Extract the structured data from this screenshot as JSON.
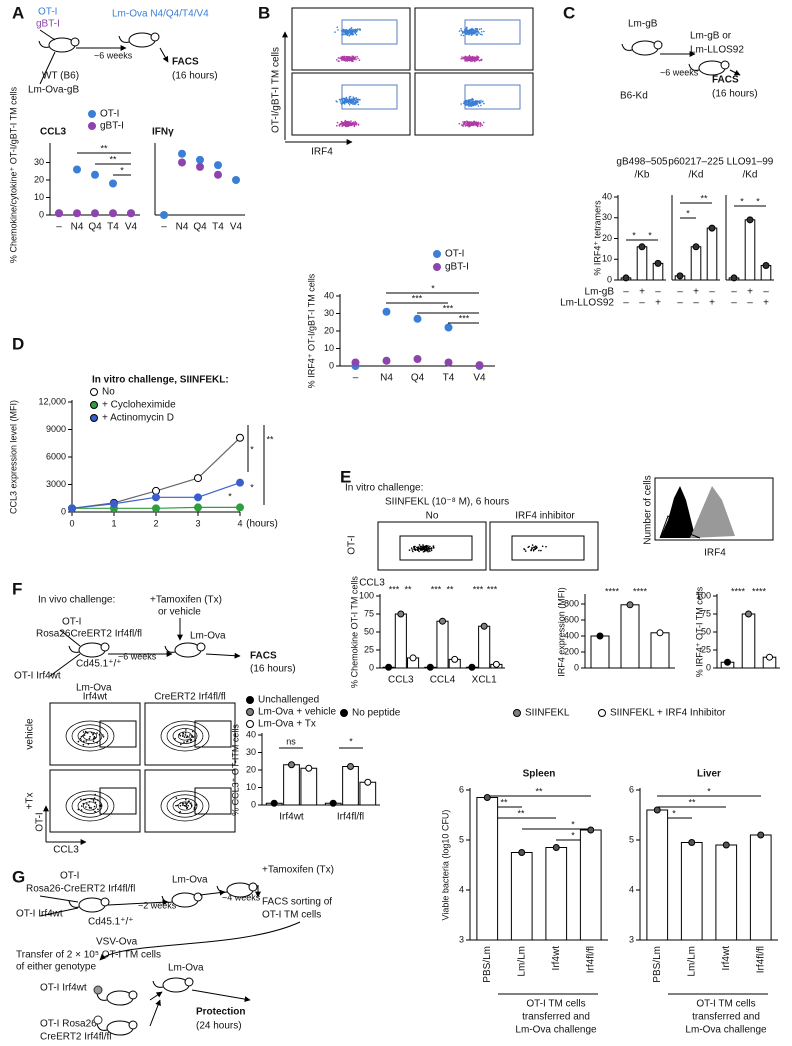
{
  "panels": [
    {
      "label": "A",
      "texts": [
        "OT-I",
        "gBT-I",
        "~6 weeks",
        "WT (B6)",
        "Lm-Ova-gB",
        "Lm-Ova N4/Q4/T4/V4",
        "FACS",
        "(16 hours)"
      ]
    },
    {
      "label": "B",
      "texts": [
        "N4",
        "Q4",
        "T4",
        "V4",
        "OT-I/gBT-I TM cells",
        "IRF4"
      ]
    },
    {
      "label": "C",
      "texts": [
        "Lm-gB",
        "Lm-gB or",
        "Lm-LLOS92",
        "~6 weeks",
        "B6-Kd",
        "FACS",
        "(16 hours)",
        "Lm-gB",
        "Lm-LLOS92"
      ]
    },
    {
      "label": "D"
    },
    {
      "label": "E",
      "texts": [
        "In vitro challenge:",
        "SIINFEKL (10⁻⁸ M), 6 hours",
        "No",
        "IRF4 inhibitor",
        "OT-I",
        "CCL3",
        "Number of cells",
        "IRF4"
      ],
      "gates": [
        85.5,
        10
      ]
    },
    {
      "label": "F",
      "texts": [
        "In vivo challenge:",
        "+Tamoxifen (Tx)",
        "or vehicle",
        "OT-I",
        "Rosa26CreERT2 Irf4fl/fl",
        "Lm-Ova",
        "~6 weeks",
        "FACS",
        "(16 hours)",
        "OT-I Irf4wt",
        "Cd45.1⁺/⁺",
        "Lm-Ova",
        "Irf4wt",
        "CreERT2 Irf4fl/fl",
        "vehicle",
        "+Tx",
        "OT-I",
        "CCL3"
      ],
      "gates": [
        22.9,
        20.2,
        16.6,
        8.99
      ]
    },
    {
      "label": "G",
      "texts": [
        "OT-I",
        "Rosa26-CreERT2 Irf4fl/fl",
        "OT-I Irf4wt",
        "Cd45.1⁺/⁺",
        "VSV-Ova",
        "~2 weeks",
        "Lm-Ova",
        "~4 weeks",
        "+Tamoxifen (Tx)",
        "FACS sorting of",
        "OT-I TM cells",
        "Transfer of 2 × 10⁵ OT-I TM cells",
        "of either genotype",
        "OT-I Irf4wt",
        "Lm-Ova",
        "Protection",
        "(24 hours)",
        "OT-I Rosa26-",
        "CreERT2 Irf4fl/fl"
      ]
    }
  ],
  "chart_data": [
    {
      "type": "dot",
      "title": "CCL3",
      "ylabel": "% Chemokine/cytokine⁺ OT-I/gBT-I TM cells",
      "categories": [
        "–",
        "N4",
        "Q4",
        "T4",
        "V4"
      ],
      "ylim": [
        0,
        40
      ],
      "yticks": [
        0,
        10,
        20,
        30
      ],
      "series": [
        {
          "name": "OT-I",
          "color": "#3a7fd5",
          "values": [
            1,
            26,
            23,
            18,
            1
          ]
        },
        {
          "name": "gBT-I",
          "color": "#8e44ad",
          "values": [
            1,
            1,
            1,
            1,
            1
          ]
        }
      ],
      "annotations": [
        "**",
        "**",
        "*"
      ]
    },
    {
      "type": "dot",
      "title": "IFNγ",
      "categories": [
        "–",
        "N4",
        "Q4",
        "T4",
        "V4"
      ],
      "ylim": [
        0,
        80
      ],
      "series": [
        {
          "color": "#3a7fd5",
          "values": [
            0,
            70,
            63,
            57,
            40
          ]
        },
        {
          "color": "#8e44ad",
          "values": [
            null,
            60,
            55,
            46,
            null
          ]
        }
      ]
    },
    {
      "type": "dot",
      "ylabel": "% IRF4⁺ OT-I/gBT-I TM cells",
      "categories": [
        "–",
        "N4",
        "Q4",
        "T4",
        "V4"
      ],
      "ylim": [
        0,
        40
      ],
      "yticks": [
        0,
        10,
        20,
        30,
        40
      ],
      "series": [
        {
          "name": "OT-I",
          "color": "#3a7fd5",
          "values": [
            0,
            31,
            27,
            22,
            0
          ]
        },
        {
          "name": "gBT-I",
          "color": "#8e44ad",
          "values": [
            2,
            3,
            4,
            2,
            0.5
          ]
        }
      ],
      "annotations": [
        "*",
        "***",
        "***",
        "***"
      ]
    },
    {
      "type": "bar",
      "title": [
        "gB498–505",
        "/Kb"
      ],
      "ylabel": "% IRF4⁺ tetramers",
      "ylim": [
        0,
        40
      ],
      "yticks": [
        0,
        10,
        20,
        30,
        40
      ],
      "values": [
        1,
        16,
        8
      ],
      "color": "#333333",
      "conditions": [
        [
          "–",
          "+",
          "–"
        ],
        [
          "–",
          "–",
          "+"
        ]
      ],
      "annotations": [
        "*",
        "*"
      ]
    },
    {
      "type": "bar",
      "title": [
        "p60217–225",
        "/Kd"
      ],
      "ylim": [
        0,
        40
      ],
      "values": [
        2,
        16,
        25
      ],
      "color": "#333333",
      "conditions": [
        [
          "–",
          "+",
          "–"
        ],
        [
          "–",
          "–",
          "+"
        ]
      ],
      "annotations": [
        "**",
        "*"
      ]
    },
    {
      "type": "bar",
      "title": [
        "LLO91–99",
        "/Kd"
      ],
      "ylim": [
        0,
        40
      ],
      "values": [
        1,
        29,
        7
      ],
      "color": "#333333",
      "conditions": [
        [
          "–",
          "+",
          "–"
        ],
        [
          "–",
          "–",
          "+"
        ]
      ],
      "annotations": [
        "*",
        "*"
      ]
    },
    {
      "type": "line",
      "title": "In vitro challenge, SIINFEKL:",
      "ylabel": "CCL3 expression level (MFI)",
      "xlabel": "(hours)",
      "x": [
        0,
        1,
        2,
        3,
        4
      ],
      "xlim": [
        0,
        4
      ],
      "xticks": [
        0,
        1,
        2,
        3,
        4
      ],
      "ylim": [
        0,
        12000
      ],
      "yticks": [
        0,
        3000,
        6000,
        9000,
        {
          "value": 12000,
          "label": "12,000"
        }
      ],
      "series": [
        {
          "name": "No",
          "color": "#000000",
          "values": [
            400,
            1000,
            2300,
            3700,
            8100
          ]
        },
        {
          "name": "+ Cycloheximide",
          "color": "#2e9e3e",
          "values": [
            400,
            400,
            400,
            500,
            500
          ]
        },
        {
          "name": "+ Actinomycin D",
          "color": "#3a5fcd",
          "values": [
            400,
            900,
            1600,
            1600,
            3200
          ]
        }
      ],
      "annotations": [
        "*",
        "**",
        "*",
        "*"
      ]
    },
    {
      "type": "bar",
      "ylabel": "% Chemokine OT-I TM cells",
      "categories": [
        "CCL3",
        "CCL4",
        "XCL1"
      ],
      "ylim": [
        0,
        100
      ],
      "yticks": [
        0,
        25,
        50,
        75,
        100
      ],
      "series": [
        {
          "name": "No peptide",
          "color": "#000000",
          "values": [
            1,
            1,
            1
          ]
        },
        {
          "name": "SIINFEKL",
          "color": "#808080",
          "values": [
            75,
            65,
            58
          ]
        },
        {
          "name": "SIINFEKL + IRF4 Inhibitor",
          "color": "#ffffff",
          "values": [
            14,
            12,
            5
          ]
        }
      ],
      "annotations": [
        "***",
        "**",
        "***",
        "**",
        "***",
        "***"
      ]
    },
    {
      "type": "bar",
      "ylabel": "IRF4 expression (MFI)",
      "ylim": [
        0,
        900
      ],
      "yticks": [
        0,
        200,
        400,
        600,
        800
      ],
      "values": [
        400,
        790,
        440
      ],
      "colors": [
        "#000000",
        "#808080",
        "#ffffff"
      ],
      "annotations": [
        "****",
        "****"
      ]
    },
    {
      "type": "bar",
      "ylabel": "% IRF4⁺ OT-I TM cells",
      "ylim": [
        0,
        100
      ],
      "yticks": [
        0,
        25,
        50,
        75,
        100
      ],
      "values": [
        8,
        75,
        15
      ],
      "colors": [
        "#000000",
        "#808080",
        "#ffffff"
      ],
      "annotations": [
        "****",
        "****"
      ]
    },
    {
      "type": "bar",
      "ylabel": "% CCL3⁺ OT-ITM cells",
      "categories": [
        "Irf4wt",
        "Irf4fl/fl"
      ],
      "ylim": [
        0,
        40
      ],
      "yticks": [
        0,
        10,
        20,
        30,
        40
      ],
      "series": [
        {
          "name": "Unchallenged",
          "color": "#000000",
          "values": [
            1,
            1
          ]
        },
        {
          "name": "Lm-Ova + vehicle",
          "color": "#808080",
          "values": [
            23,
            22
          ]
        },
        {
          "name": "Lm-Ova + Tx",
          "color": "#ffffff",
          "values": [
            21,
            13
          ]
        }
      ],
      "annotations": [
        "ns",
        "*"
      ]
    },
    {
      "type": "bar",
      "title": "Spleen",
      "ylabel": "Viable bacteria (log10 CFU)",
      "categories": [
        "PBS/Lm",
        "Lm/Lm",
        "Irf4wt",
        "Irf4fl/fl"
      ],
      "ylim": [
        3,
        6
      ],
      "yticks": [
        3,
        4,
        5,
        6
      ],
      "values": [
        5.85,
        4.75,
        4.85,
        5.2
      ],
      "color": "#555555",
      "xlabel": [
        "OT-I TM cells",
        "transferred and",
        "Lm-Ova challenge"
      ],
      "annotations": [
        "**",
        "**",
        "**",
        "*",
        "*"
      ]
    },
    {
      "type": "bar",
      "title": "Liver",
      "categories": [
        "PBS/Lm",
        "Lm/Lm",
        "Irf4wt",
        "Irf4fl/fl"
      ],
      "ylim": [
        3,
        6
      ],
      "yticks": [
        3,
        4,
        5,
        6
      ],
      "values": [
        5.6,
        4.95,
        4.9,
        5.1
      ],
      "color": "#555555",
      "xlabel": [
        "OT-I TM cells",
        "transferred and",
        "Lm-Ova challenge"
      ],
      "annotations": [
        "*",
        "**",
        "*"
      ]
    }
  ]
}
